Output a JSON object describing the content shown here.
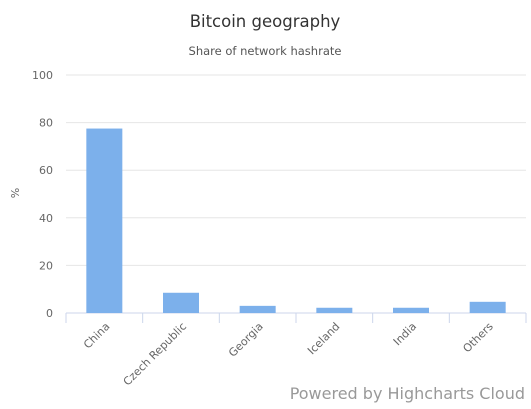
{
  "chart_data": {
    "type": "bar",
    "title": "Bitcoin geography",
    "subtitle": "Share of network hashrate",
    "ylabel": "%",
    "xlabel": "",
    "categories": [
      "China",
      "Czech Republic",
      "Georgia",
      "Iceland",
      "India",
      "Others"
    ],
    "values": [
      77.5,
      8.5,
      3,
      2.2,
      2.2,
      4.7
    ],
    "ylim": [
      0,
      100
    ],
    "yticks": [
      "0",
      "20",
      "40",
      "60",
      "80",
      "100"
    ],
    "grid": true,
    "legend": false,
    "bar_color": "#7cb0eb"
  },
  "credits": {
    "text": "Powered by Highcharts Cloud"
  }
}
